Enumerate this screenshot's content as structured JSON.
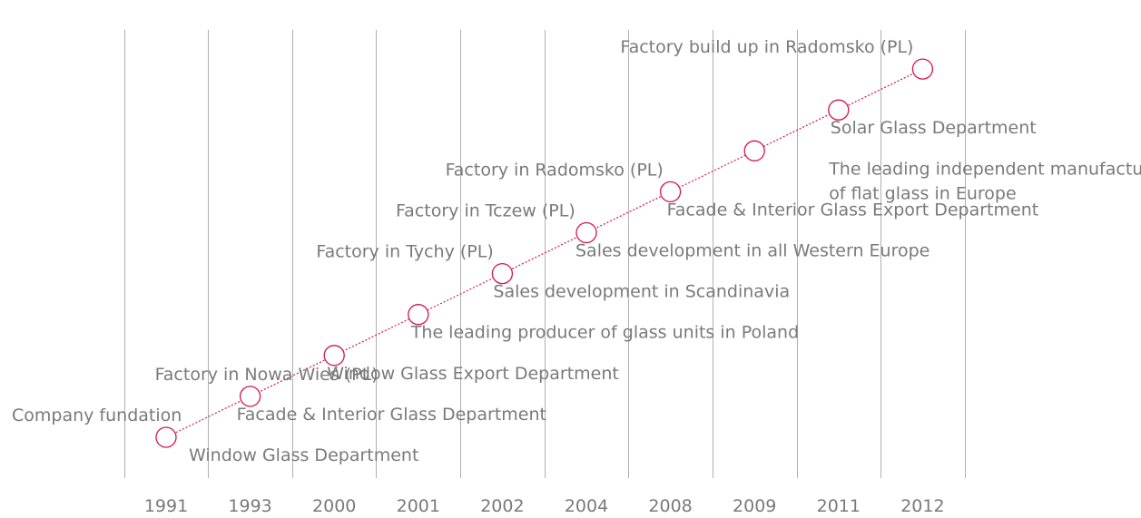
{
  "timeline": {
    "accent_color": "#d4145a",
    "grid_color": "#b0b0b0",
    "text_color": "#7a7a7a",
    "events": [
      {
        "year": "1991",
        "above": "Company fundation",
        "below": [
          "Window Glass Department"
        ]
      },
      {
        "year": "1993",
        "above": "Factory in Nowa Wieś (PL)",
        "below": [
          "Facade & Interior Glass Department"
        ]
      },
      {
        "year": "2000",
        "above": "",
        "below": [
          "Window Glass Export Department"
        ]
      },
      {
        "year": "2001",
        "above": "",
        "below": [
          "The leading producer of glass units in Poland"
        ]
      },
      {
        "year": "2002",
        "above": "Factory in Tychy (PL)",
        "below": [
          "Sales development in Scandinavia"
        ]
      },
      {
        "year": "2004",
        "above": "Factory in Tczew (PL)",
        "below": [
          "Sales development in all Western Europe"
        ]
      },
      {
        "year": "2008",
        "above": "Factory in Radomsko (PL)",
        "below": [
          "Facade & Interior Glass Export Department"
        ]
      },
      {
        "year": "2009",
        "above": "",
        "below": [
          "The leading independent manufacturer",
          "of flat glass in Europe"
        ]
      },
      {
        "year": "2011",
        "above": "",
        "below": [
          "Solar Glass Department"
        ]
      },
      {
        "year": "2012",
        "above": "Factory build up in Radomsko (PL)",
        "below": []
      }
    ]
  }
}
